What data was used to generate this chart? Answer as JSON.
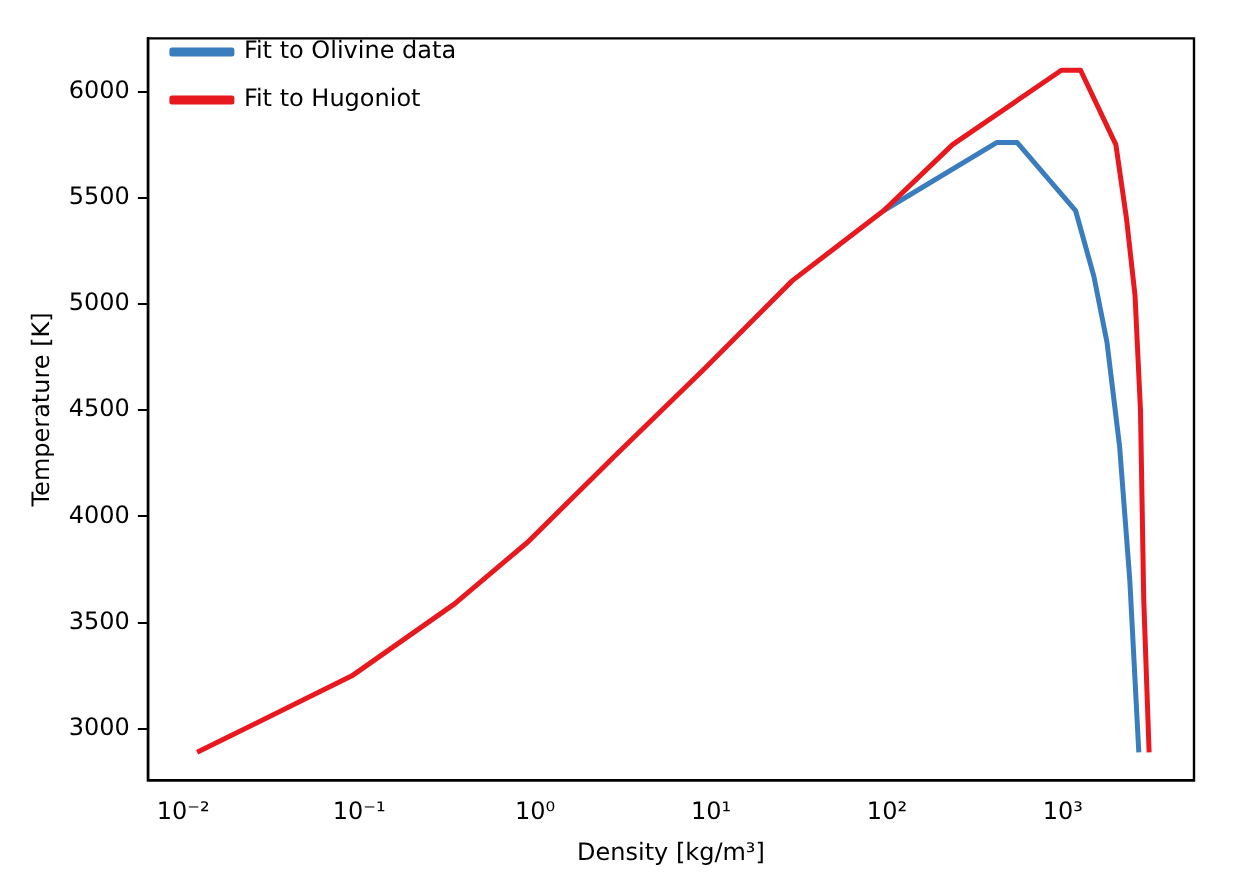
{
  "chart_data": {
    "type": "line",
    "xlabel": "Density [kg/m³]",
    "ylabel": "Temperature [K]",
    "log": "x",
    "grid": false,
    "legend": "top left",
    "marker": "none",
    "line_style": "solid",
    "xlim": [
      0.0063,
      5560
    ],
    "ylim": [
      2758,
      6250
    ],
    "xticks": [
      {
        "value": 0.01,
        "label": "10⁻²"
      },
      {
        "value": 0.1,
        "label": "10⁻¹"
      },
      {
        "value": 1,
        "label": "10⁰"
      },
      {
        "value": 10,
        "label": "10¹"
      },
      {
        "value": 100,
        "label": "10²"
      },
      {
        "value": 1000,
        "label": "10³"
      }
    ],
    "yticks": [
      3000,
      3500,
      4000,
      4500,
      5000,
      5500,
      6000
    ],
    "series": [
      {
        "name": "Fit to Olivine data",
        "color": "#3a7dbf",
        "x": [
          96,
          420,
          550,
          1180,
          1500,
          1780,
          2100,
          2400,
          2700
        ],
        "values": [
          5440,
          5760,
          5760,
          5440,
          5130,
          4820,
          4330,
          3700,
          2890
        ]
      },
      {
        "name": "Fit to Hugoniot",
        "color": "#e8191e",
        "x": [
          0.012,
          0.091,
          0.35,
          0.91,
          2.8,
          9.3,
          29,
          96,
          236,
          980,
          1260,
          2000,
          2300,
          2570,
          2760,
          2880,
          3090
        ],
        "values": [
          2890,
          3250,
          3590,
          3880,
          4280,
          4700,
          5110,
          5440,
          5750,
          6100,
          6100,
          5750,
          5400,
          5040,
          4500,
          3610,
          2890
        ]
      }
    ]
  }
}
